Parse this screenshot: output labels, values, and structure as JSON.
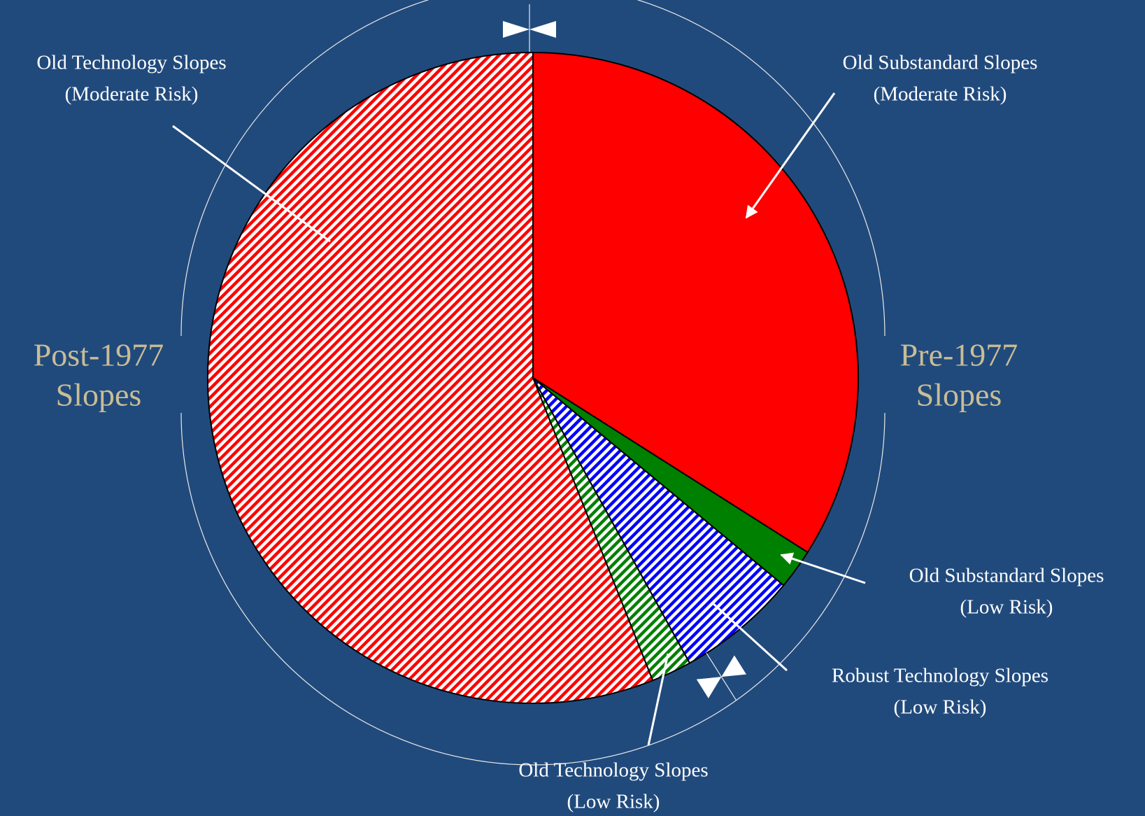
{
  "chart_data": {
    "type": "pie",
    "categories": [
      [
        "Old Substandard Slopes",
        "(Moderate Risk)"
      ],
      [
        "Old Substandard Slopes",
        "(Low Risk)"
      ],
      [
        "Robust Technology Slopes",
        "(Low Risk)"
      ],
      [
        "Old Technology Slopes",
        "(Low Risk)"
      ],
      [
        "Old Technology Slopes",
        "(Moderate Risk)"
      ]
    ],
    "values": [
      34,
      2,
      6,
      2,
      56
    ],
    "colors": [
      "#ff0000",
      "#008000",
      "#0000ff",
      "#008000",
      "#ff0000"
    ],
    "hatched": [
      false,
      false,
      true,
      true,
      true
    ],
    "groups": [
      {
        "label": [
          "Pre-1977",
          "Slopes"
        ]
      },
      {
        "label": [
          "Post-1977",
          "Slopes"
        ]
      }
    ]
  }
}
